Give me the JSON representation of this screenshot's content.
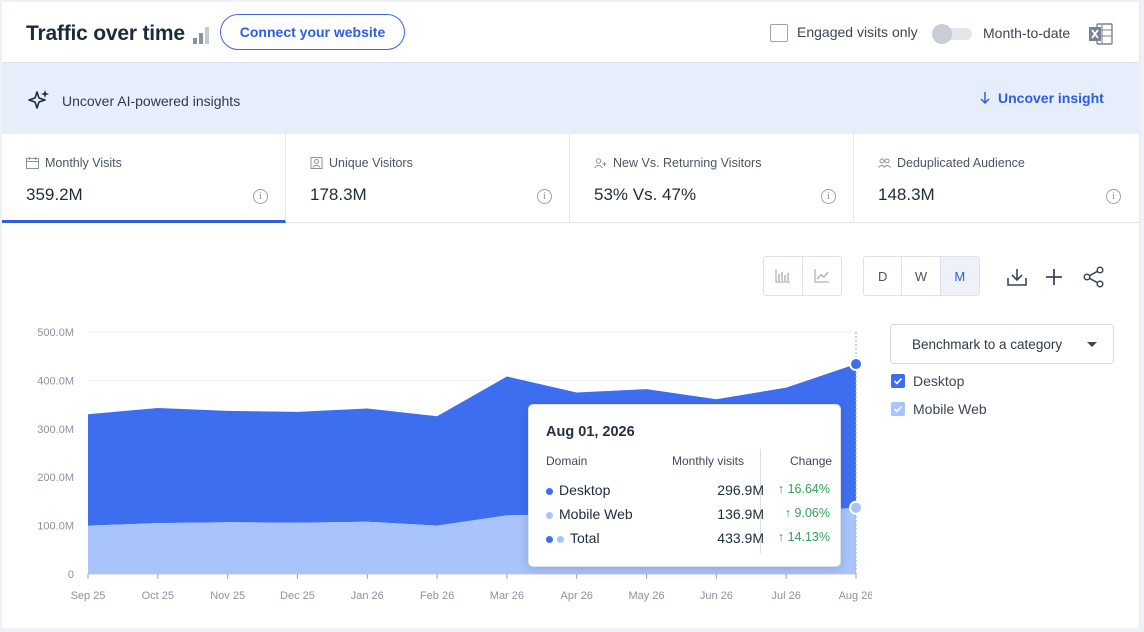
{
  "header": {
    "title": "Traffic over time",
    "connect_label": "Connect your website",
    "engaged_label": "Engaged visits only",
    "mtd_label": "Month-to-date"
  },
  "insights": {
    "text": "Uncover AI-powered insights",
    "button_label": "Uncover insight"
  },
  "metrics": [
    {
      "label": "Monthly Visits",
      "value": "359.2M",
      "icon": "calendar-icon",
      "active": true
    },
    {
      "label": "Unique Visitors",
      "value": "178.3M",
      "icon": "person-icon",
      "active": false
    },
    {
      "label": "New Vs. Returning Visitors",
      "value": "53% Vs. 47%",
      "icon": "person-add-icon",
      "active": false
    },
    {
      "label": "Deduplicated Audience",
      "value": "148.3M",
      "icon": "people-icon",
      "active": false
    }
  ],
  "granularity": {
    "options": [
      "D",
      "W",
      "M"
    ],
    "selected": "M"
  },
  "benchmark": {
    "label": "Benchmark to a category"
  },
  "legend": [
    {
      "name": "Desktop",
      "color": "#3e6ef0",
      "checked": true
    },
    {
      "name": "Mobile Web",
      "color": "#a8c4fb",
      "checked": true
    }
  ],
  "chart_data": {
    "type": "area",
    "stacked": true,
    "categories": [
      "Sep 25",
      "Oct 25",
      "Nov 25",
      "Dec 25",
      "Jan 26",
      "Feb 26",
      "Mar 26",
      "Apr 26",
      "May 26",
      "Jun 26",
      "Jul 26",
      "Aug 26"
    ],
    "y_ticks": [
      "500.0M",
      "400.0M",
      "300.0M",
      "200.0M",
      "100.0M",
      "0"
    ],
    "ylim": [
      0,
      500
    ],
    "series": [
      {
        "name": "Mobile Web",
        "color": "#a8c4fb",
        "values": [
          100,
          105,
          107,
          106,
          108,
          100,
          121,
          124,
          123,
          122,
          128,
          136.9
        ]
      },
      {
        "name": "Desktop",
        "color": "#3e6ef0",
        "values": [
          230,
          238,
          230,
          229,
          234,
          226,
          287,
          251,
          259,
          239,
          257,
          296.9
        ]
      }
    ],
    "grid": true,
    "legend_position": "right"
  },
  "tooltip": {
    "date": "Aug 01, 2026",
    "col_domain": "Domain",
    "col_visits": "Monthly visits",
    "col_change": "Change",
    "rows": [
      {
        "name": "Desktop",
        "value": "296.9M",
        "change": "16.64%"
      },
      {
        "name": "Mobile Web",
        "value": "136.9M",
        "change": "9.06%"
      },
      {
        "name": "Total",
        "value": "433.9M",
        "change": "14.13%"
      }
    ]
  }
}
